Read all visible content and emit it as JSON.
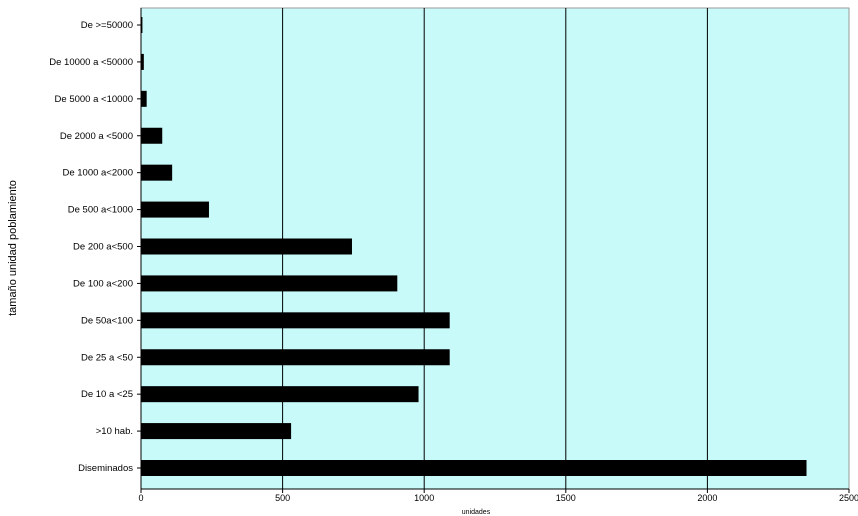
{
  "chart_data": {
    "type": "bar",
    "orientation": "horizontal",
    "title": "",
    "xlabel": "unidades",
    "ylabel": "tamaño unidad poblamiento",
    "categories": [
      "De >=50000",
      "De 10000 a <50000",
      "De 5000 a <10000",
      "De 2000 a <5000",
      "De 1000 a<2000",
      "De 500 a<1000",
      "De 200 a<500",
      "De 100 a<200",
      "De 50a<100",
      "De 25 a <50",
      "De 10 a <25",
      ">10 hab.",
      "Diseminados"
    ],
    "values": [
      5,
      10,
      20,
      75,
      110,
      240,
      745,
      905,
      1090,
      1090,
      980,
      530,
      2350
    ],
    "xlim": [
      0,
      2500
    ],
    "xticks": [
      "0",
      "500",
      "1000",
      "1500",
      "2000",
      "2500"
    ],
    "grid": "vertical",
    "legend": "none",
    "colors": {
      "plot_background": "#c8fafa",
      "bar": "#000000",
      "gridline": "#000000"
    }
  }
}
